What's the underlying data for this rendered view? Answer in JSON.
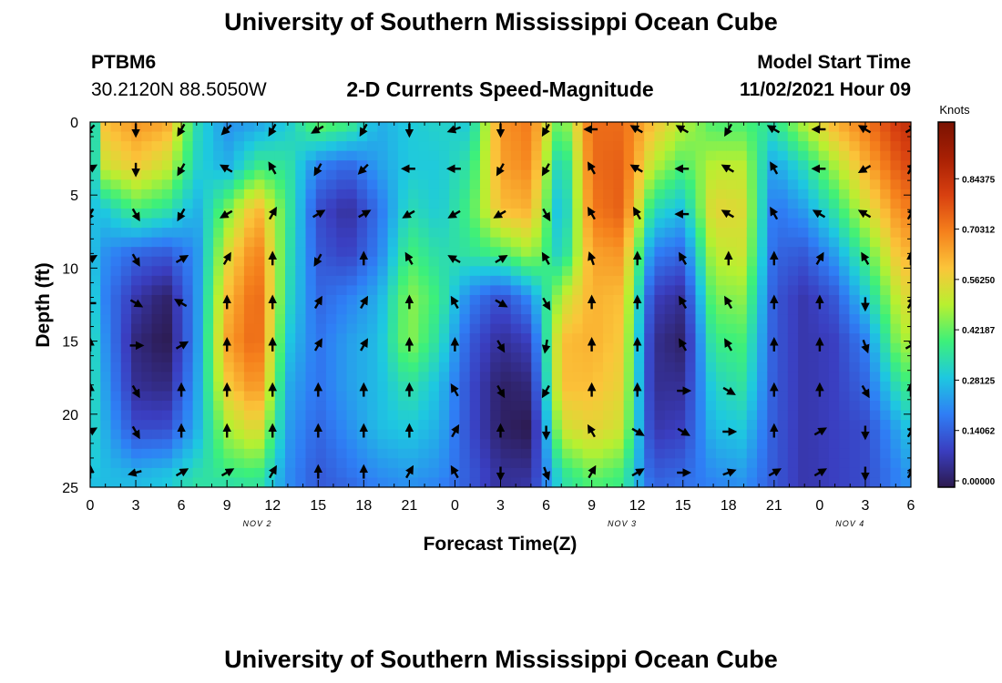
{
  "page": {
    "title": "University of Southern Mississippi Ocean Cube",
    "footer_title": "University of Southern Mississippi Ocean Cube",
    "station_id": "PTBM6",
    "station_coords": "30.2120N  88.5050W",
    "subtitle": "2-D Currents Speed-Magnitude",
    "model_start_label": "Model Start Time",
    "model_start_value": "11/02/2021 Hour 09"
  },
  "chart_data": {
    "type": "heatmap",
    "title": "2-D Currents Speed-Magnitude",
    "xlabel": "Forecast Time(Z)",
    "ylabel": "Depth (ft)",
    "x_tick_labels": [
      "0",
      "3",
      "6",
      "9",
      "12",
      "15",
      "18",
      "21",
      "0",
      "3",
      "6",
      "9",
      "12",
      "15",
      "18",
      "21",
      "0",
      "3",
      "6"
    ],
    "day_labels": [
      {
        "label": "NOV 2",
        "at_hour": 11
      },
      {
        "label": "NOV 3",
        "at_hour": 35
      },
      {
        "label": "NOV 4",
        "at_hour": 50
      }
    ],
    "x_range_hours": [
      0,
      54
    ],
    "y_ticks": [
      0,
      5,
      10,
      15,
      20,
      25
    ],
    "ylim": [
      0,
      25
    ],
    "y_inverted": true,
    "colorbar": {
      "unit": "Knots",
      "range": [
        0,
        0.984375
      ],
      "tick_values": [
        0.0,
        0.140625,
        0.28125,
        0.421875,
        0.5625,
        0.703125,
        0.84375
      ],
      "tick_labels": [
        "0.00000",
        "0.14062",
        "0.28125",
        "0.42187",
        "0.56250",
        "0.70312",
        "0.84375"
      ],
      "colors": [
        "#2c1a4e",
        "#3a3ec0",
        "#2f7ef5",
        "#1ec8e0",
        "#3df07a",
        "#b8f030",
        "#fbc53a",
        "#f5801c",
        "#d84010",
        "#a82004",
        "#7a1202"
      ]
    },
    "depth_rows": [
      0,
      3,
      6,
      9,
      12,
      15,
      18,
      21,
      24,
      25
    ],
    "speed_columns": [
      {
        "hour": 0,
        "speeds": [
          0.22,
          0.26,
          0.28,
          0.3,
          0.34,
          0.36,
          0.36,
          0.34,
          0.3,
          0.28
        ]
      },
      {
        "hour": 1,
        "speeds": [
          0.6,
          0.52,
          0.3,
          0.22,
          0.2,
          0.22,
          0.24,
          0.26,
          0.28,
          0.28
        ]
      },
      {
        "hour": 3,
        "speeds": [
          0.66,
          0.58,
          0.4,
          0.16,
          0.08,
          0.04,
          0.06,
          0.12,
          0.26,
          0.28
        ]
      },
      {
        "hour": 5,
        "speeds": [
          0.64,
          0.52,
          0.36,
          0.14,
          0.02,
          0.0,
          0.04,
          0.12,
          0.28,
          0.3
        ]
      },
      {
        "hour": 7,
        "speeds": [
          0.34,
          0.32,
          0.26,
          0.22,
          0.22,
          0.22,
          0.24,
          0.26,
          0.34,
          0.36
        ]
      },
      {
        "hour": 9,
        "speeds": [
          0.22,
          0.26,
          0.44,
          0.54,
          0.6,
          0.64,
          0.58,
          0.48,
          0.38,
          0.34
        ]
      },
      {
        "hour": 11,
        "speeds": [
          0.24,
          0.38,
          0.62,
          0.7,
          0.74,
          0.74,
          0.68,
          0.56,
          0.4,
          0.36
        ]
      },
      {
        "hour": 13,
        "speeds": [
          0.3,
          0.36,
          0.38,
          0.36,
          0.34,
          0.3,
          0.26,
          0.24,
          0.22,
          0.22
        ]
      },
      {
        "hour": 15,
        "speeds": [
          0.44,
          0.2,
          0.12,
          0.14,
          0.16,
          0.18,
          0.18,
          0.16,
          0.14,
          0.14
        ]
      },
      {
        "hour": 17,
        "speeds": [
          0.4,
          0.16,
          0.06,
          0.1,
          0.2,
          0.24,
          0.24,
          0.22,
          0.18,
          0.16
        ]
      },
      {
        "hour": 19,
        "speeds": [
          0.26,
          0.24,
          0.18,
          0.2,
          0.26,
          0.28,
          0.28,
          0.28,
          0.22,
          0.2
        ]
      },
      {
        "hour": 21,
        "speeds": [
          0.3,
          0.3,
          0.34,
          0.4,
          0.46,
          0.46,
          0.36,
          0.3,
          0.24,
          0.22
        ]
      },
      {
        "hour": 23,
        "speeds": [
          0.32,
          0.3,
          0.3,
          0.34,
          0.38,
          0.34,
          0.28,
          0.26,
          0.22,
          0.2
        ]
      },
      {
        "hour": 25,
        "speeds": [
          0.3,
          0.36,
          0.4,
          0.36,
          0.2,
          0.14,
          0.12,
          0.12,
          0.14,
          0.14
        ]
      },
      {
        "hour": 27,
        "speeds": [
          0.66,
          0.64,
          0.6,
          0.4,
          0.12,
          0.06,
          0.02,
          0.02,
          0.06,
          0.06
        ]
      },
      {
        "hour": 29,
        "speeds": [
          0.7,
          0.68,
          0.62,
          0.48,
          0.22,
          0.1,
          0.04,
          0.0,
          0.06,
          0.08
        ]
      },
      {
        "hour": 31,
        "speeds": [
          0.4,
          0.28,
          0.24,
          0.3,
          0.5,
          0.6,
          0.6,
          0.52,
          0.36,
          0.34
        ]
      },
      {
        "hour": 33,
        "speeds": [
          0.72,
          0.72,
          0.7,
          0.64,
          0.62,
          0.62,
          0.6,
          0.56,
          0.44,
          0.4
        ]
      },
      {
        "hour": 35,
        "speeds": [
          0.72,
          0.74,
          0.74,
          0.66,
          0.6,
          0.58,
          0.56,
          0.52,
          0.4,
          0.38
        ]
      },
      {
        "hour": 37,
        "speeds": [
          0.6,
          0.5,
          0.34,
          0.2,
          0.1,
          0.06,
          0.06,
          0.08,
          0.14,
          0.16
        ]
      },
      {
        "hour": 39,
        "speeds": [
          0.5,
          0.4,
          0.28,
          0.16,
          0.06,
          0.02,
          0.06,
          0.1,
          0.16,
          0.18
        ]
      },
      {
        "hour": 41,
        "speeds": [
          0.4,
          0.5,
          0.56,
          0.5,
          0.44,
          0.38,
          0.32,
          0.28,
          0.22,
          0.2
        ]
      },
      {
        "hour": 43,
        "speeds": [
          0.4,
          0.5,
          0.54,
          0.52,
          0.46,
          0.4,
          0.36,
          0.3,
          0.24,
          0.22
        ]
      },
      {
        "hour": 45,
        "speeds": [
          0.36,
          0.24,
          0.18,
          0.16,
          0.14,
          0.14,
          0.14,
          0.14,
          0.14,
          0.14
        ]
      },
      {
        "hour": 47,
        "speeds": [
          0.5,
          0.34,
          0.24,
          0.14,
          0.08,
          0.08,
          0.08,
          0.08,
          0.08,
          0.08
        ]
      },
      {
        "hour": 49,
        "speeds": [
          0.62,
          0.48,
          0.36,
          0.24,
          0.14,
          0.1,
          0.1,
          0.1,
          0.1,
          0.1
        ]
      },
      {
        "hour": 51,
        "speeds": [
          0.7,
          0.62,
          0.52,
          0.4,
          0.3,
          0.2,
          0.16,
          0.12,
          0.12,
          0.12
        ]
      },
      {
        "hour": 53,
        "speeds": [
          0.8,
          0.74,
          0.66,
          0.58,
          0.5,
          0.44,
          0.34,
          0.24,
          0.2,
          0.2
        ]
      },
      {
        "hour": 54,
        "speeds": [
          0.84,
          0.78,
          0.7,
          0.62,
          0.56,
          0.5,
          0.4,
          0.3,
          0.24,
          0.22
        ]
      }
    ],
    "vector_times_hours": [
      0,
      3,
      6,
      9,
      12,
      15,
      18,
      21,
      24,
      27,
      30,
      33,
      36,
      39,
      42,
      45,
      48,
      51,
      54
    ],
    "vector_depths_ft": [
      0.5,
      3.2,
      6.3,
      9.4,
      12.4,
      15.3,
      18.4,
      21.2,
      24.0
    ],
    "vector_directions_deg": [
      [
        225,
        180,
        210,
        225,
        210,
        240,
        210,
        180,
        250,
        180,
        210,
        270,
        300,
        300,
        210,
        300,
        270,
        300,
        60
      ],
      [
        60,
        180,
        210,
        300,
        330,
        210,
        225,
        270,
        270,
        210,
        210,
        330,
        300,
        270,
        300,
        330,
        270,
        240,
        30
      ],
      [
        210,
        150,
        210,
        240,
        30,
        60,
        60,
        240,
        240,
        240,
        150,
        330,
        330,
        270,
        300,
        330,
        300,
        300,
        30
      ],
      [
        60,
        150,
        60,
        30,
        0,
        210,
        0,
        330,
        300,
        60,
        330,
        340,
        0,
        330,
        0,
        0,
        30,
        330,
        0
      ],
      [
        270,
        120,
        300,
        0,
        0,
        30,
        30,
        0,
        330,
        120,
        150,
        0,
        0,
        330,
        330,
        0,
        0,
        180,
        30
      ],
      [
        0,
        90,
        60,
        0,
        0,
        30,
        30,
        0,
        0,
        150,
        190,
        0,
        0,
        330,
        330,
        0,
        0,
        160,
        60
      ],
      [
        0,
        150,
        0,
        0,
        0,
        0,
        0,
        0,
        330,
        150,
        210,
        0,
        0,
        90,
        120,
        0,
        0,
        150,
        0
      ],
      [
        60,
        150,
        0,
        0,
        0,
        0,
        0,
        0,
        30,
        0,
        180,
        330,
        120,
        120,
        90,
        0,
        60,
        180,
        30
      ],
      [
        0,
        255,
        60,
        60,
        30,
        0,
        0,
        30,
        330,
        180,
        160,
        30,
        60,
        90,
        70,
        60,
        60,
        180,
        30
      ]
    ],
    "grid": false,
    "legend": "colorbar right"
  }
}
